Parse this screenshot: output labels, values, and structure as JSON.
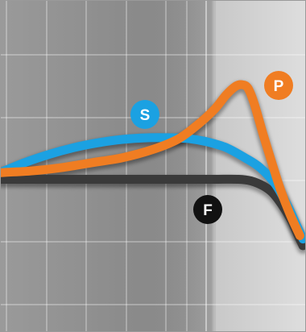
{
  "chart_data": {
    "type": "line",
    "title": "",
    "xlabel": "",
    "ylabel": "",
    "grid": true,
    "xlim": [
      0,
      100
    ],
    "ylim": [
      0,
      100
    ],
    "series": [
      {
        "name": "F",
        "color": "#3a3a3a",
        "x": [
          0,
          10,
          20,
          30,
          40,
          50,
          60,
          70,
          78,
          82,
          86,
          89,
          92,
          95,
          97,
          99
        ],
        "y": [
          46,
          46,
          46,
          46,
          46,
          46,
          46,
          46,
          46,
          45.5,
          44,
          42,
          38.5,
          34,
          30,
          26
        ]
      },
      {
        "name": "S",
        "color": "#1ba1e2",
        "x": [
          0,
          8,
          16,
          24,
          32,
          40,
          48,
          56,
          62,
          68,
          74,
          80,
          85,
          90,
          94,
          97,
          99
        ],
        "y": [
          48,
          51,
          53.5,
          55.5,
          57,
          58,
          58.5,
          58.5,
          58.2,
          57.2,
          55.5,
          52.5,
          49.5,
          44.5,
          38,
          32,
          28
        ]
      },
      {
        "name": "P",
        "color": "#f07d22",
        "x": [
          0,
          10,
          20,
          30,
          40,
          50,
          58,
          64,
          70,
          74,
          77,
          79,
          81,
          83,
          86,
          89,
          92,
          95,
          98
        ],
        "y": [
          48,
          48.5,
          49.5,
          51,
          52.5,
          55,
          58,
          62,
          67,
          71.5,
          74,
          74.5,
          73.5,
          69,
          59.5,
          50.5,
          42,
          35,
          29
        ]
      }
    ]
  },
  "badges": {
    "s": {
      "label": "S",
      "fill": "#1ba1e2"
    },
    "p": {
      "label": "P",
      "fill": "#f07d22"
    },
    "f": {
      "label": "F",
      "fill": "#111111"
    }
  },
  "colors": {
    "panel_left": "#8f8f8f",
    "panel_right": "#d4d4d4",
    "band": "#b9b9b9",
    "grid": "#ffffff"
  }
}
